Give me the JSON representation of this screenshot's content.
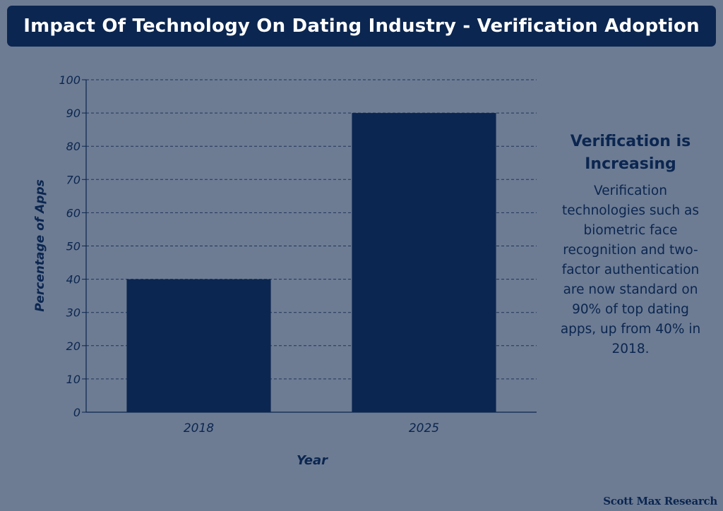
{
  "title": "Impact Of Technology On Dating Industry - Verification Adoption",
  "side_panel": {
    "heading": "Verification is Increasing",
    "body": "Verification technologies such as biometric face recognition and two-factor authentication are now standard on 90% of top dating apps, up from 40% in 2018."
  },
  "brand": "Scott Max Research",
  "colors": {
    "background": "#6d7c93",
    "bar": "#0b2650",
    "text": "#0b2650"
  },
  "chart_data": {
    "type": "bar",
    "categories": [
      "2018",
      "2025"
    ],
    "values": [
      40,
      90
    ],
    "xlabel": "Year",
    "ylabel": "Percentage of Apps",
    "ylim": [
      0,
      100
    ],
    "yticks": [
      0,
      10,
      20,
      30,
      40,
      50,
      60,
      70,
      80,
      90,
      100
    ],
    "grid": true,
    "legend": "none"
  }
}
